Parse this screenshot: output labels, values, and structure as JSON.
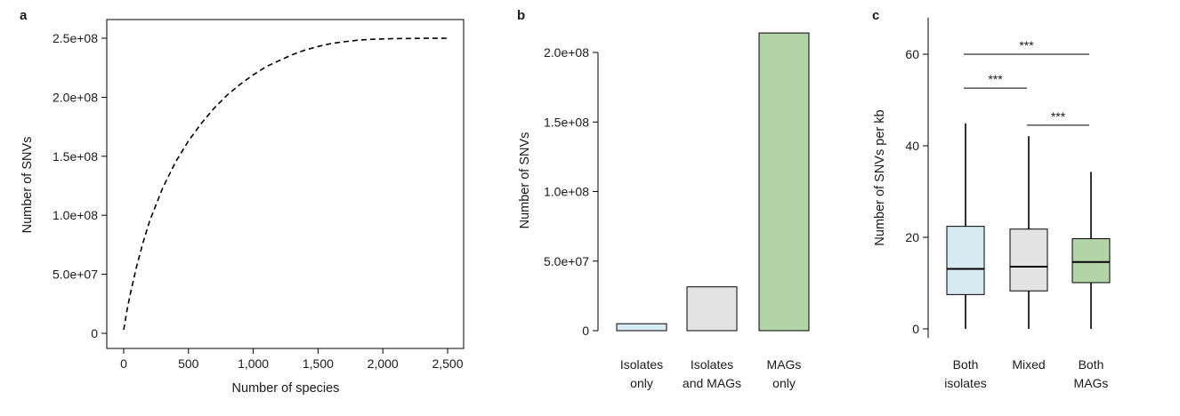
{
  "colors": {
    "isolates": "#d6eaf2",
    "mixed": "#e3e3e3",
    "mags": "#b2d4a6",
    "line": "#000000"
  },
  "chart_data": [
    {
      "panel": "a",
      "type": "line",
      "line_style": "dashed",
      "xlabel": "Number of species",
      "ylabel": "Number of SNVs",
      "xlim": [
        0,
        2500
      ],
      "ylim": [
        0,
        250000000
      ],
      "xticks": [
        0,
        500,
        1000,
        1500,
        2000,
        2500
      ],
      "xtick_labels": [
        "0",
        "500",
        "1,000",
        "1,500",
        "2,000",
        "2,500"
      ],
      "yticks": [
        0,
        50000000,
        100000000,
        150000000,
        200000000,
        250000000
      ],
      "ytick_labels": [
        "0",
        "5.0e+07",
        "1.0e+08",
        "1.5e+08",
        "2.0e+08",
        "2.5e+08"
      ],
      "x": [
        0,
        25,
        50,
        100,
        150,
        200,
        300,
        400,
        500,
        600,
        700,
        800,
        900,
        1000,
        1100,
        1200,
        1300,
        1400,
        1500,
        1600,
        1700,
        1800,
        1900,
        2000,
        2100,
        2200,
        2300,
        2400,
        2500
      ],
      "y": [
        3000000,
        19000000,
        33000000,
        57000000,
        77000000,
        95000000,
        123000000,
        145000000,
        163000000,
        178000000,
        191000000,
        202000000,
        211000000,
        219000000,
        226000000,
        231000000,
        236000000,
        240000000,
        243000000,
        245500000,
        247000000,
        248300000,
        249000000,
        249400000,
        249700000,
        249800000,
        249900000,
        249950000,
        250000000
      ]
    },
    {
      "panel": "b",
      "type": "bar",
      "ylabel": "Number of SNVs",
      "ylim": [
        0,
        220000000
      ],
      "yticks": [
        0,
        50000000,
        100000000,
        150000000,
        200000000
      ],
      "ytick_labels": [
        "0",
        "5.0e+07",
        "1.0e+08",
        "1.5e+08",
        "2.0e+08"
      ],
      "categories": [
        {
          "line1": "Isolates",
          "line2": "only"
        },
        {
          "line1": "Isolates",
          "line2": "and MAGs"
        },
        {
          "line1": "MAGs",
          "line2": "only"
        }
      ],
      "values": [
        5000000,
        31500000,
        214000000
      ]
    },
    {
      "panel": "c",
      "type": "box",
      "ylabel": "Number of SNVs per kb",
      "ylim": [
        -2,
        68
      ],
      "yticks": [
        0,
        20,
        40,
        60
      ],
      "ytick_labels": [
        "0",
        "20",
        "40",
        "60"
      ],
      "categories": [
        {
          "line1": "Both",
          "line2": "isolates"
        },
        {
          "line1": "Mixed",
          "line2": ""
        },
        {
          "line1": "Both",
          "line2": "MAGs"
        }
      ],
      "boxes": [
        {
          "min": 0,
          "q1": 7.5,
          "median": 13.1,
          "q3": 22.4,
          "max": 44.9
        },
        {
          "min": 0,
          "q1": 8.3,
          "median": 13.6,
          "q3": 21.8,
          "max": 42.1
        },
        {
          "min": 0,
          "q1": 10.1,
          "median": 14.6,
          "q3": 19.7,
          "max": 34.3
        }
      ],
      "significance": [
        {
          "from": 0,
          "to": 2,
          "y": 60,
          "label": "***"
        },
        {
          "from": 0,
          "to": 1,
          "y": 52.6,
          "label": "***"
        },
        {
          "from": 1,
          "to": 2,
          "y": 44.5,
          "label": "***"
        }
      ]
    }
  ]
}
